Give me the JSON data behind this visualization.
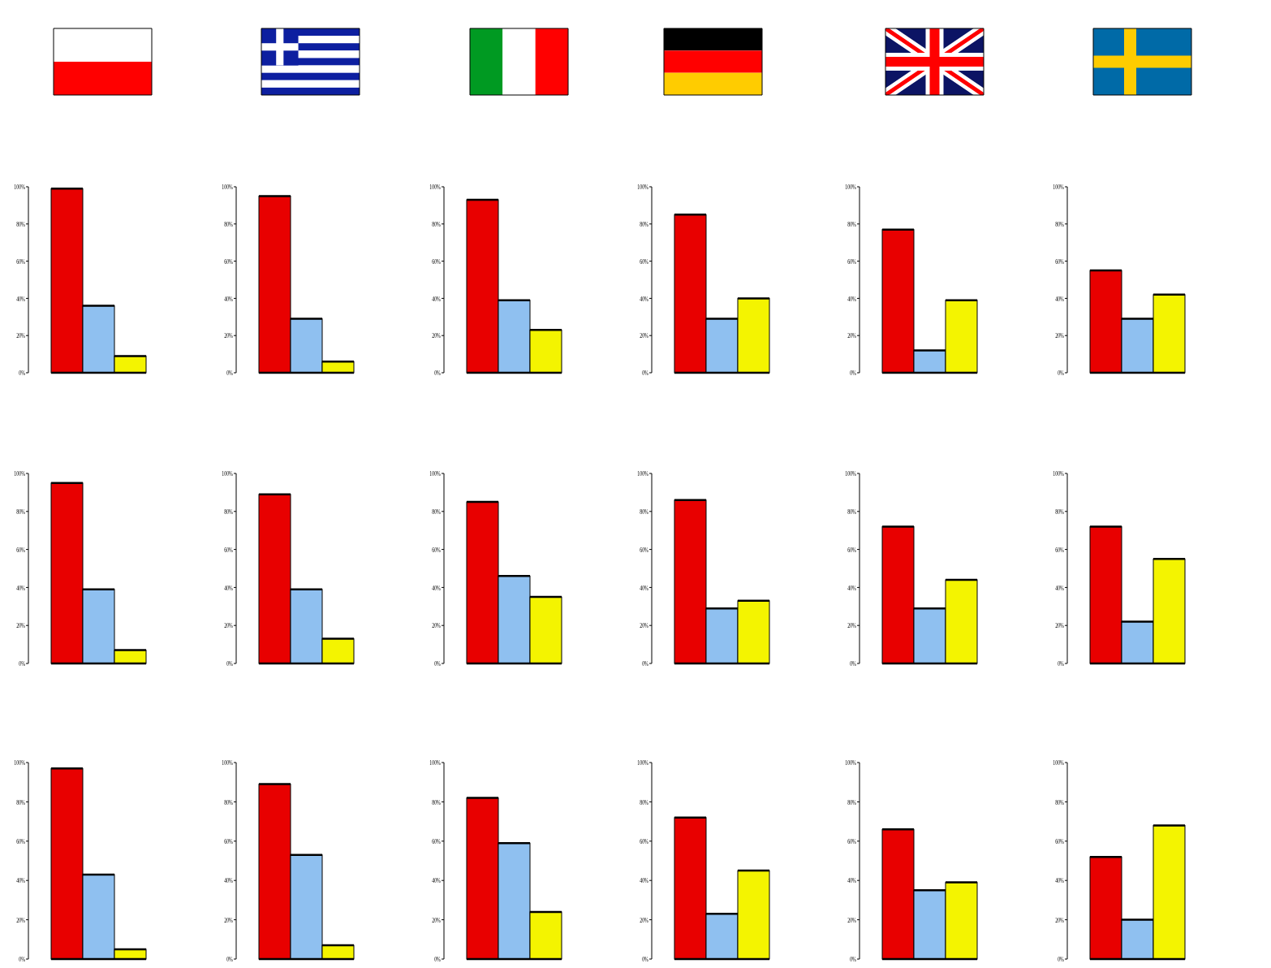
{
  "chart_data": [
    {
      "type": "bar",
      "categories": [
        null,
        null,
        null
      ],
      "values": [
        99,
        36,
        9
      ],
      "colors": [
        "#e80000",
        "#8fc0f0",
        "#f4f400"
      ],
      "ylim": [
        0,
        100
      ],
      "yticks": [
        {
          "value": 0,
          "label": "0%"
        },
        {
          "value": 20,
          "label": "20%"
        },
        {
          "value": 40,
          "label": "40%"
        },
        {
          "value": 60,
          "label": "60%"
        },
        {
          "value": 80,
          "label": "80%"
        },
        {
          "value": 100,
          "label": "100%"
        }
      ]
    },
    {
      "type": "bar",
      "categories": [
        null,
        null,
        null
      ],
      "values": [
        95,
        29,
        6
      ],
      "colors": [
        "#e80000",
        "#8fc0f0",
        "#f4f400"
      ],
      "ylim": [
        0,
        100
      ],
      "yticks": [
        {
          "value": 0,
          "label": "0%"
        },
        {
          "value": 20,
          "label": "20%"
        },
        {
          "value": 40,
          "label": "40%"
        },
        {
          "value": 60,
          "label": "60%"
        },
        {
          "value": 80,
          "label": "80%"
        },
        {
          "value": 100,
          "label": "100%"
        }
      ]
    },
    {
      "type": "bar",
      "categories": [
        null,
        null,
        null
      ],
      "values": [
        93,
        39,
        23
      ],
      "colors": [
        "#e80000",
        "#8fc0f0",
        "#f4f400"
      ],
      "ylim": [
        0,
        100
      ],
      "yticks": [
        {
          "value": 0,
          "label": "0%"
        },
        {
          "value": 20,
          "label": "20%"
        },
        {
          "value": 40,
          "label": "40%"
        },
        {
          "value": 60,
          "label": "60%"
        },
        {
          "value": 80,
          "label": "80%"
        },
        {
          "value": 100,
          "label": "100%"
        }
      ]
    },
    {
      "type": "bar",
      "categories": [
        null,
        null,
        null
      ],
      "values": [
        85,
        29,
        40
      ],
      "colors": [
        "#e80000",
        "#8fc0f0",
        "#f4f400"
      ],
      "ylim": [
        0,
        100
      ],
      "yticks": [
        {
          "value": 0,
          "label": "0%"
        },
        {
          "value": 20,
          "label": "20%"
        },
        {
          "value": 40,
          "label": "40%"
        },
        {
          "value": 60,
          "label": "60%"
        },
        {
          "value": 80,
          "label": "80%"
        },
        {
          "value": 100,
          "label": "100%"
        }
      ]
    },
    {
      "type": "bar",
      "categories": [
        null,
        null,
        null
      ],
      "values": [
        77,
        12,
        39
      ],
      "colors": [
        "#e80000",
        "#8fc0f0",
        "#f4f400"
      ],
      "ylim": [
        0,
        100
      ],
      "yticks": [
        {
          "value": 0,
          "label": "0%"
        },
        {
          "value": 20,
          "label": "20%"
        },
        {
          "value": 40,
          "label": "40%"
        },
        {
          "value": 60,
          "label": "60%"
        },
        {
          "value": 80,
          "label": "80%"
        },
        {
          "value": 100,
          "label": "100%"
        }
      ]
    },
    {
      "type": "bar",
      "categories": [
        null,
        null,
        null
      ],
      "values": [
        55,
        29,
        42
      ],
      "colors": [
        "#e80000",
        "#8fc0f0",
        "#f4f400"
      ],
      "ylim": [
        0,
        100
      ],
      "yticks": [
        {
          "value": 0,
          "label": "0%"
        },
        {
          "value": 20,
          "label": "20%"
        },
        {
          "value": 40,
          "label": "40%"
        },
        {
          "value": 60,
          "label": "60%"
        },
        {
          "value": 80,
          "label": "80%"
        },
        {
          "value": 100,
          "label": "100%"
        }
      ]
    },
    {
      "type": "bar",
      "categories": [
        null,
        null,
        null
      ],
      "values": [
        95,
        39,
        7
      ],
      "colors": [
        "#e80000",
        "#8fc0f0",
        "#f4f400"
      ],
      "ylim": [
        0,
        100
      ],
      "yticks": [
        {
          "value": 0,
          "label": "0%"
        },
        {
          "value": 20,
          "label": "20%"
        },
        {
          "value": 40,
          "label": "40%"
        },
        {
          "value": 60,
          "label": "60%"
        },
        {
          "value": 80,
          "label": "80%"
        },
        {
          "value": 100,
          "label": "100%"
        }
      ]
    },
    {
      "type": "bar",
      "categories": [
        null,
        null,
        null
      ],
      "values": [
        89,
        39,
        13
      ],
      "colors": [
        "#e80000",
        "#8fc0f0",
        "#f4f400"
      ],
      "ylim": [
        0,
        100
      ],
      "yticks": [
        {
          "value": 0,
          "label": "0%"
        },
        {
          "value": 20,
          "label": "20%"
        },
        {
          "value": 40,
          "label": "40%"
        },
        {
          "value": 60,
          "label": "60%"
        },
        {
          "value": 80,
          "label": "80%"
        },
        {
          "value": 100,
          "label": "100%"
        }
      ]
    },
    {
      "type": "bar",
      "categories": [
        null,
        null,
        null
      ],
      "values": [
        85,
        46,
        35
      ],
      "colors": [
        "#e80000",
        "#8fc0f0",
        "#f4f400"
      ],
      "ylim": [
        0,
        100
      ],
      "yticks": [
        {
          "value": 0,
          "label": "0%"
        },
        {
          "value": 20,
          "label": "20%"
        },
        {
          "value": 40,
          "label": "40%"
        },
        {
          "value": 60,
          "label": "60%"
        },
        {
          "value": 80,
          "label": "80%"
        },
        {
          "value": 100,
          "label": "100%"
        }
      ]
    },
    {
      "type": "bar",
      "categories": [
        null,
        null,
        null
      ],
      "values": [
        86,
        29,
        33
      ],
      "colors": [
        "#e80000",
        "#8fc0f0",
        "#f4f400"
      ],
      "ylim": [
        0,
        100
      ],
      "yticks": [
        {
          "value": 0,
          "label": "0%"
        },
        {
          "value": 20,
          "label": "20%"
        },
        {
          "value": 40,
          "label": "40%"
        },
        {
          "value": 60,
          "label": "60%"
        },
        {
          "value": 80,
          "label": "80%"
        },
        {
          "value": 100,
          "label": "100%"
        }
      ]
    },
    {
      "type": "bar",
      "categories": [
        null,
        null,
        null
      ],
      "values": [
        72,
        29,
        44
      ],
      "colors": [
        "#e80000",
        "#8fc0f0",
        "#f4f400"
      ],
      "ylim": [
        0,
        100
      ],
      "yticks": [
        {
          "value": 0,
          "label": "0%"
        },
        {
          "value": 20,
          "label": "20%"
        },
        {
          "value": 40,
          "label": "40%"
        },
        {
          "value": 60,
          "label": "60%"
        },
        {
          "value": 80,
          "label": "80%"
        },
        {
          "value": 100,
          "label": "100%"
        }
      ]
    },
    {
      "type": "bar",
      "categories": [
        null,
        null,
        null
      ],
      "values": [
        72,
        22,
        55
      ],
      "colors": [
        "#e80000",
        "#8fc0f0",
        "#f4f400"
      ],
      "ylim": [
        0,
        100
      ],
      "yticks": [
        {
          "value": 0,
          "label": "0%"
        },
        {
          "value": 20,
          "label": "20%"
        },
        {
          "value": 40,
          "label": "40%"
        },
        {
          "value": 60,
          "label": "60%"
        },
        {
          "value": 80,
          "label": "80%"
        },
        {
          "value": 100,
          "label": "100%"
        }
      ]
    },
    {
      "type": "bar",
      "categories": [
        null,
        null,
        null
      ],
      "values": [
        97,
        43,
        5
      ],
      "colors": [
        "#e80000",
        "#8fc0f0",
        "#f4f400"
      ],
      "ylim": [
        0,
        100
      ],
      "yticks": [
        {
          "value": 0,
          "label": "0%"
        },
        {
          "value": 20,
          "label": "20%"
        },
        {
          "value": 40,
          "label": "40%"
        },
        {
          "value": 60,
          "label": "60%"
        },
        {
          "value": 80,
          "label": "80%"
        },
        {
          "value": 100,
          "label": "100%"
        }
      ]
    },
    {
      "type": "bar",
      "categories": [
        null,
        null,
        null
      ],
      "values": [
        89,
        53,
        7
      ],
      "colors": [
        "#e80000",
        "#8fc0f0",
        "#f4f400"
      ],
      "ylim": [
        0,
        100
      ],
      "yticks": [
        {
          "value": 0,
          "label": "0%"
        },
        {
          "value": 20,
          "label": "20%"
        },
        {
          "value": 40,
          "label": "40%"
        },
        {
          "value": 60,
          "label": "60%"
        },
        {
          "value": 80,
          "label": "80%"
        },
        {
          "value": 100,
          "label": "100%"
        }
      ]
    },
    {
      "type": "bar",
      "categories": [
        null,
        null,
        null
      ],
      "values": [
        82,
        59,
        24
      ],
      "colors": [
        "#e80000",
        "#8fc0f0",
        "#f4f400"
      ],
      "ylim": [
        0,
        100
      ],
      "yticks": [
        {
          "value": 0,
          "label": "0%"
        },
        {
          "value": 20,
          "label": "20%"
        },
        {
          "value": 40,
          "label": "40%"
        },
        {
          "value": 60,
          "label": "60%"
        },
        {
          "value": 80,
          "label": "80%"
        },
        {
          "value": 100,
          "label": "100%"
        }
      ]
    },
    {
      "type": "bar",
      "categories": [
        null,
        null,
        null
      ],
      "values": [
        72,
        23,
        45
      ],
      "colors": [
        "#e80000",
        "#8fc0f0",
        "#f4f400"
      ],
      "ylim": [
        0,
        100
      ],
      "yticks": [
        {
          "value": 0,
          "label": "0%"
        },
        {
          "value": 20,
          "label": "20%"
        },
        {
          "value": 40,
          "label": "40%"
        },
        {
          "value": 60,
          "label": "60%"
        },
        {
          "value": 80,
          "label": "80%"
        },
        {
          "value": 100,
          "label": "100%"
        }
      ]
    },
    {
      "type": "bar",
      "categories": [
        null,
        null,
        null
      ],
      "values": [
        66,
        35,
        39
      ],
      "colors": [
        "#e80000",
        "#8fc0f0",
        "#f4f400"
      ],
      "ylim": [
        0,
        100
      ],
      "yticks": [
        {
          "value": 0,
          "label": "0%"
        },
        {
          "value": 20,
          "label": "20%"
        },
        {
          "value": 40,
          "label": "40%"
        },
        {
          "value": 60,
          "label": "60%"
        },
        {
          "value": 80,
          "label": "80%"
        },
        {
          "value": 100,
          "label": "100%"
        }
      ]
    },
    {
      "type": "bar",
      "categories": [
        null,
        null,
        null
      ],
      "values": [
        52,
        20,
        68
      ],
      "colors": [
        "#e80000",
        "#8fc0f0",
        "#f4f400"
      ],
      "ylim": [
        0,
        100
      ],
      "yticks": [
        {
          "value": 0,
          "label": "0%"
        },
        {
          "value": 20,
          "label": "20%"
        },
        {
          "value": 40,
          "label": "40%"
        },
        {
          "value": 60,
          "label": "60%"
        },
        {
          "value": 80,
          "label": "80%"
        },
        {
          "value": 100,
          "label": "100%"
        }
      ]
    }
  ]
}
